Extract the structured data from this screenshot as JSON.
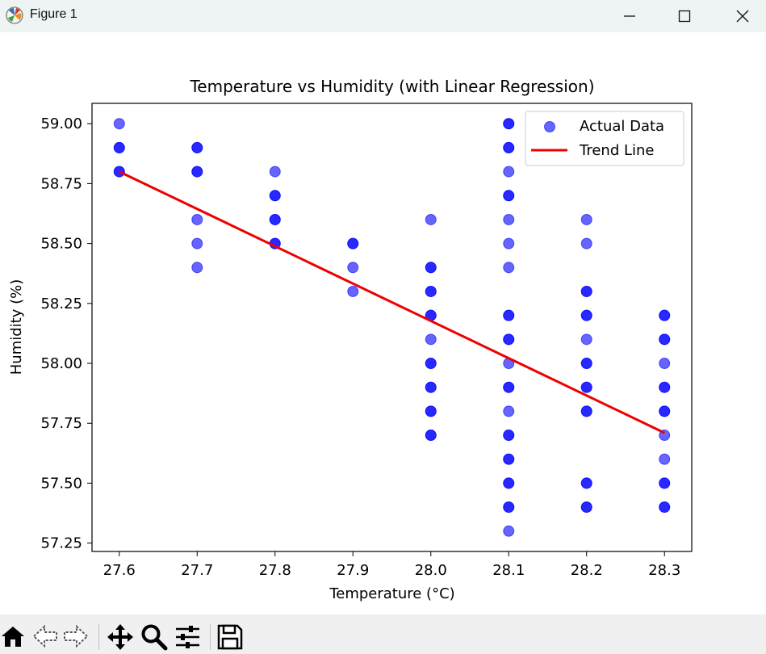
{
  "window": {
    "title": "Figure 1",
    "icons": [
      "matplotlib-icon",
      "minimize-icon",
      "maximize-icon",
      "close-icon"
    ]
  },
  "toolbar": {
    "icons": [
      "home-icon",
      "back-arrow-icon",
      "forward-arrow-icon",
      "pan-icon",
      "zoom-icon",
      "configure-subplots-icon",
      "save-icon"
    ]
  },
  "chart_data": {
    "type": "scatter",
    "title": "Temperature vs Humidity (with Linear Regression)",
    "xlabel": "Temperature (°C)",
    "ylabel": "Humidity (%)",
    "xlim": [
      27.565,
      28.335
    ],
    "ylim": [
      57.215,
      59.085
    ],
    "xticks": [
      "27.6",
      "27.7",
      "27.8",
      "27.9",
      "28.0",
      "28.1",
      "28.2",
      "28.3"
    ],
    "yticks": [
      "57.25",
      "57.50",
      "57.75",
      "58.00",
      "58.25",
      "58.50",
      "58.75",
      "59.00"
    ],
    "grid": false,
    "legend": {
      "position": "top-right",
      "entries": [
        "Actual Data",
        "Trend Line"
      ]
    },
    "colors": {
      "points": "#0000ff",
      "trend": "#ee0000"
    },
    "series": [
      {
        "name": "Actual Data",
        "kind": "scatter",
        "points": [
          [
            27.6,
            59.0
          ],
          [
            27.6,
            58.9
          ],
          [
            27.6,
            58.9
          ],
          [
            27.6,
            58.8
          ],
          [
            27.6,
            58.8
          ],
          [
            27.7,
            58.9
          ],
          [
            27.7,
            58.9
          ],
          [
            27.7,
            58.8
          ],
          [
            27.7,
            58.8
          ],
          [
            27.7,
            58.6
          ],
          [
            27.7,
            58.5
          ],
          [
            27.7,
            58.4
          ],
          [
            27.8,
            58.8
          ],
          [
            27.8,
            58.7
          ],
          [
            27.8,
            58.7
          ],
          [
            27.8,
            58.6
          ],
          [
            27.8,
            58.6
          ],
          [
            27.8,
            58.5
          ],
          [
            27.8,
            58.5
          ],
          [
            27.9,
            58.5
          ],
          [
            27.9,
            58.5
          ],
          [
            27.9,
            58.4
          ],
          [
            27.9,
            58.3
          ],
          [
            28.0,
            58.6
          ],
          [
            28.0,
            58.4
          ],
          [
            28.0,
            58.4
          ],
          [
            28.0,
            58.3
          ],
          [
            28.0,
            58.3
          ],
          [
            28.0,
            58.2
          ],
          [
            28.0,
            58.2
          ],
          [
            28.0,
            58.1
          ],
          [
            28.0,
            58.0
          ],
          [
            28.0,
            58.0
          ],
          [
            28.0,
            57.9
          ],
          [
            28.0,
            57.9
          ],
          [
            28.0,
            57.8
          ],
          [
            28.0,
            57.8
          ],
          [
            28.0,
            57.7
          ],
          [
            28.0,
            57.7
          ],
          [
            28.1,
            59.0
          ],
          [
            28.1,
            59.0
          ],
          [
            28.1,
            58.9
          ],
          [
            28.1,
            58.9
          ],
          [
            28.1,
            58.8
          ],
          [
            28.1,
            58.7
          ],
          [
            28.1,
            58.7
          ],
          [
            28.1,
            58.6
          ],
          [
            28.1,
            58.5
          ],
          [
            28.1,
            58.4
          ],
          [
            28.1,
            58.2
          ],
          [
            28.1,
            58.2
          ],
          [
            28.1,
            58.1
          ],
          [
            28.1,
            58.1
          ],
          [
            28.1,
            58.0
          ],
          [
            28.1,
            57.9
          ],
          [
            28.1,
            57.9
          ],
          [
            28.1,
            57.8
          ],
          [
            28.1,
            57.7
          ],
          [
            28.1,
            57.7
          ],
          [
            28.1,
            57.6
          ],
          [
            28.1,
            57.6
          ],
          [
            28.1,
            57.5
          ],
          [
            28.1,
            57.5
          ],
          [
            28.1,
            57.4
          ],
          [
            28.1,
            57.4
          ],
          [
            28.1,
            57.3
          ],
          [
            28.2,
            58.6
          ],
          [
            28.2,
            58.5
          ],
          [
            28.2,
            58.3
          ],
          [
            28.2,
            58.3
          ],
          [
            28.2,
            58.2
          ],
          [
            28.2,
            58.2
          ],
          [
            28.2,
            58.1
          ],
          [
            28.2,
            58.0
          ],
          [
            28.2,
            58.0
          ],
          [
            28.2,
            57.9
          ],
          [
            28.2,
            57.9
          ],
          [
            28.2,
            57.8
          ],
          [
            28.2,
            57.8
          ],
          [
            28.2,
            57.5
          ],
          [
            28.2,
            57.5
          ],
          [
            28.2,
            57.4
          ],
          [
            28.2,
            57.4
          ],
          [
            28.3,
            58.2
          ],
          [
            28.3,
            58.2
          ],
          [
            28.3,
            58.1
          ],
          [
            28.3,
            58.1
          ],
          [
            28.3,
            58.0
          ],
          [
            28.3,
            57.9
          ],
          [
            28.3,
            57.9
          ],
          [
            28.3,
            57.8
          ],
          [
            28.3,
            57.8
          ],
          [
            28.3,
            57.7
          ],
          [
            28.3,
            57.6
          ],
          [
            28.3,
            57.5
          ],
          [
            28.3,
            57.5
          ],
          [
            28.3,
            57.4
          ],
          [
            28.3,
            57.4
          ]
        ]
      },
      {
        "name": "Trend Line",
        "kind": "line",
        "points": [
          [
            27.6,
            58.8
          ],
          [
            28.3,
            57.71
          ]
        ]
      }
    ]
  }
}
